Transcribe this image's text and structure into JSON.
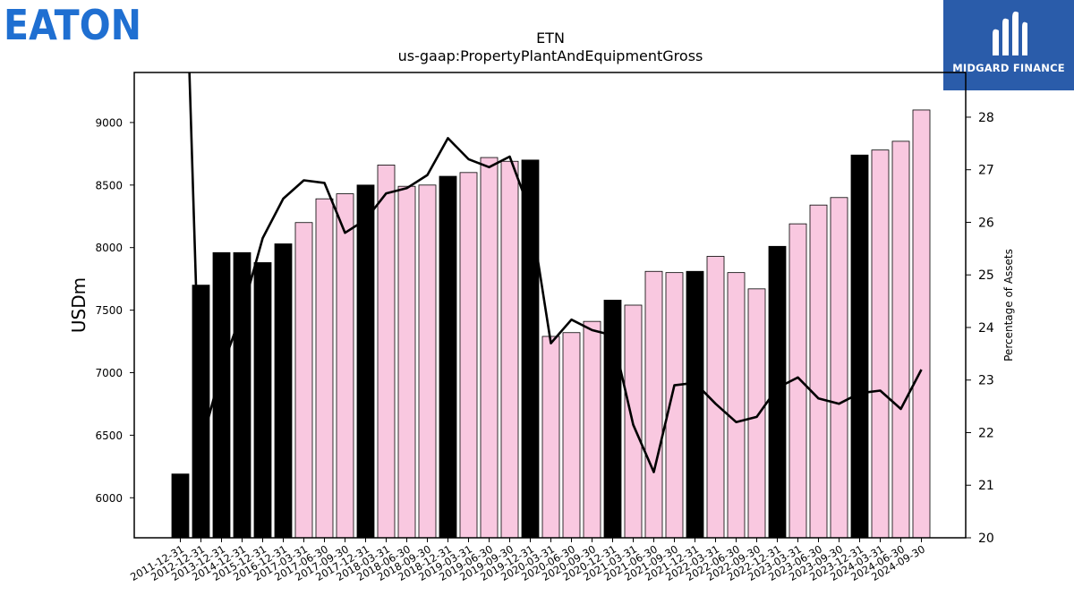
{
  "brand": {
    "left_logo_text": "EATON",
    "left_logo_color": "#1f6fd1",
    "right_logo_text": "MIDGARD FINANCE",
    "right_logo_bg": "#2a5caa"
  },
  "chart_data": {
    "type": "bar",
    "title": "ETN",
    "subtitle": "us-gaap:PropertyPlantAndEquipmentGross",
    "ylabel": "USDm",
    "y2label": "Percentage of Assets",
    "ylim": [
      5680,
      9400
    ],
    "y2lim": [
      20,
      28.85
    ],
    "yticks": [
      6000,
      6500,
      7000,
      7500,
      8000,
      8500,
      9000
    ],
    "y2ticks": [
      20,
      21,
      22,
      23,
      24,
      25,
      26,
      27,
      28
    ],
    "categories": [
      "2011-12-31",
      "2012-12-31",
      "2013-12-31",
      "2014-12-31",
      "2015-12-31",
      "2016-12-31",
      "2017-03-31",
      "2017-06-30",
      "2017-09-30",
      "2017-12-31",
      "2018-03-31",
      "2018-06-30",
      "2018-09-30",
      "2018-12-31",
      "2019-03-31",
      "2019-06-30",
      "2019-09-30",
      "2019-12-31",
      "2020-03-31",
      "2020-06-30",
      "2020-09-30",
      "2020-12-31",
      "2021-03-31",
      "2021-06-30",
      "2021-09-30",
      "2021-12-31",
      "2022-03-31",
      "2022-06-30",
      "2022-09-30",
      "2022-12-31",
      "2023-03-31",
      "2023-06-30",
      "2023-09-30",
      "2023-12-31",
      "2024-03-31",
      "2024-06-30",
      "2024-09-30"
    ],
    "series": [
      {
        "kind": "bar",
        "values": [
          6190,
          7700,
          7960,
          7960,
          7880,
          8030,
          8200,
          8390,
          8430,
          8500,
          8660,
          8490,
          8500,
          8570,
          8600,
          8720,
          8690,
          8700,
          7290,
          7320,
          7410,
          7580,
          7540,
          7810,
          7800,
          7810,
          7930,
          7800,
          7670,
          8010,
          8190,
          8340,
          8400,
          8740,
          8780,
          8850,
          9100
        ],
        "annual": [
          true,
          true,
          true,
          true,
          true,
          true,
          false,
          false,
          false,
          true,
          false,
          false,
          false,
          true,
          false,
          false,
          false,
          true,
          false,
          false,
          false,
          true,
          false,
          false,
          false,
          true,
          false,
          false,
          false,
          true,
          false,
          false,
          false,
          true,
          false,
          false,
          false
        ]
      },
      {
        "kind": "line",
        "axis": "right",
        "values": [
          null,
          21.75,
          23.2,
          24.3,
          25.7,
          26.45,
          26.8,
          26.75,
          25.8,
          26.05,
          26.55,
          26.65,
          26.9,
          27.6,
          27.2,
          27.05,
          27.25,
          26.2,
          23.7,
          24.15,
          23.95,
          23.85,
          22.15,
          21.25,
          22.9,
          22.95,
          22.55,
          22.2,
          22.3,
          22.85,
          23.05,
          22.65,
          22.55,
          22.75,
          22.8,
          22.45,
          23.2
        ],
        "start_above_axis": true
      }
    ],
    "colors": {
      "annual_bar": "#000000",
      "quarterly_bar": "#f9c8e0",
      "bar_edge": "#000000",
      "line": "#000000"
    },
    "grid": false
  }
}
